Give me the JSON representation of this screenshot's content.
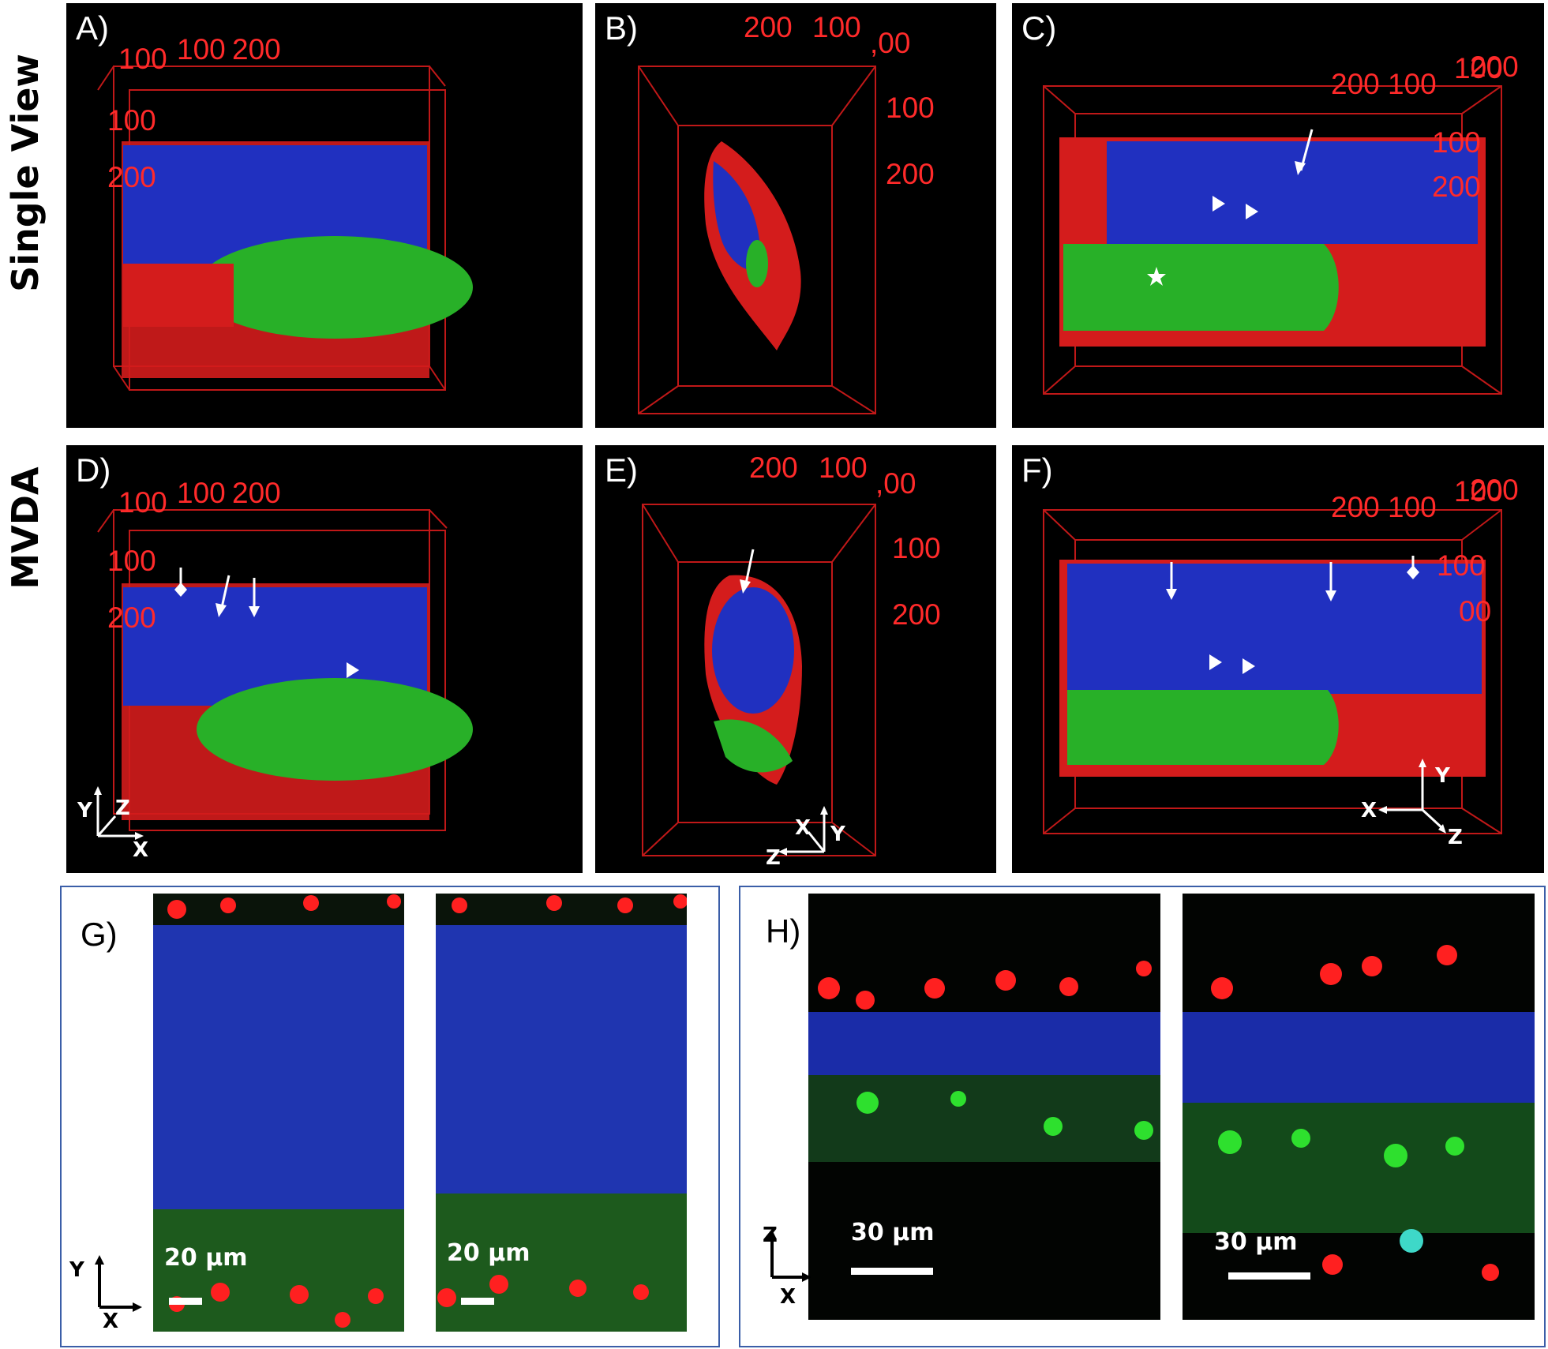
{
  "row_labels": {
    "top": "Single View",
    "middle": "MVDA"
  },
  "panels": {
    "A": {
      "label": "A)",
      "ticks": [
        "100",
        "100",
        "200",
        "100",
        "200"
      ]
    },
    "B": {
      "label": "B)",
      "ticks": [
        "200",
        "100",
        ",00",
        "100",
        "200"
      ]
    },
    "C": {
      "label": "C)",
      "ticks": [
        "200",
        "100",
        "100",
        "200",
        "100",
        "200"
      ]
    },
    "D": {
      "label": "D)",
      "ticks": [
        "100",
        "100",
        "200",
        "100",
        "200"
      ],
      "axes": [
        "Y",
        "Z",
        "X"
      ]
    },
    "E": {
      "label": "E)",
      "ticks": [
        "200",
        "100",
        ",00",
        "100",
        "200"
      ],
      "axes": [
        "X",
        "Y",
        "Z"
      ]
    },
    "F": {
      "label": "F)",
      "ticks": [
        "200",
        "100",
        "100",
        "200",
        "100",
        "00"
      ],
      "axes": [
        "Y",
        "X",
        "Z"
      ]
    },
    "G": {
      "label": "G)",
      "scale_left": "20 µm",
      "scale_right": "20 µm",
      "axes": [
        "Y",
        "X"
      ]
    },
    "H": {
      "label": "H)",
      "scale_left": "30 µm",
      "scale_right": "30 µm",
      "axes": [
        "Z",
        "X"
      ]
    }
  },
  "colors": {
    "nuclei": "#ff2020",
    "muscle": "#1a2cc8",
    "cells": "#22c022",
    "frame": "#c01818",
    "border": "#3b5ea8"
  }
}
